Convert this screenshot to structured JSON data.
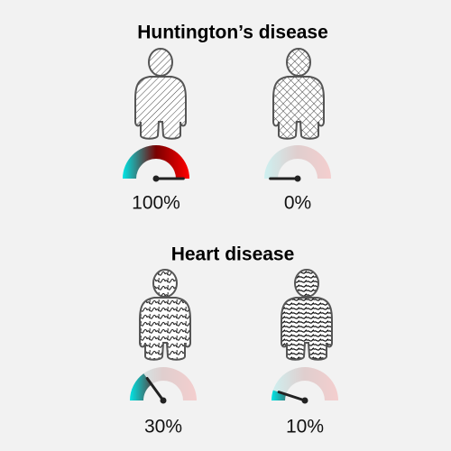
{
  "chart_data": [
    {
      "type": "gauge",
      "title": "Huntington’s disease",
      "values": [
        100,
        0
      ],
      "value_labels": [
        "100%",
        "0%"
      ],
      "ylim": [
        0,
        100
      ],
      "colors": [
        "#00e5e5",
        "#7a0000",
        "#ff0000"
      ]
    },
    {
      "type": "gauge",
      "title": "Heart disease",
      "values": [
        30,
        10
      ],
      "value_labels": [
        "30%",
        "10%"
      ],
      "ylim": [
        0,
        100
      ],
      "colors": [
        "#00e5e5",
        "#7a0000",
        "#ff0000"
      ]
    }
  ]
}
